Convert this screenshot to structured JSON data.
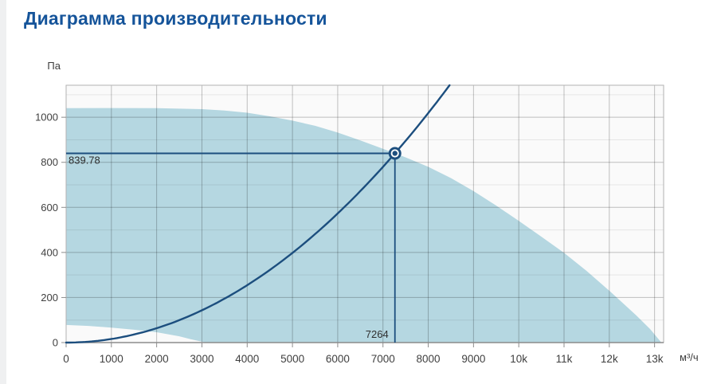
{
  "page": {
    "title": "Диаграмма производительности",
    "title_color": "#15549a",
    "background": "#eff0f1",
    "card_background": "#ffffff"
  },
  "chart_data": {
    "type": "area",
    "title": "Диаграмма производительности",
    "x_unit": "м³/ч",
    "y_unit": "Па",
    "x_range": [
      0,
      13200
    ],
    "y_range": [
      0,
      1142
    ],
    "grid": true,
    "x_ticks": [
      {
        "value": 0,
        "label": "0"
      },
      {
        "value": 1000,
        "label": "1000"
      },
      {
        "value": 2000,
        "label": "2000"
      },
      {
        "value": 3000,
        "label": "3000"
      },
      {
        "value": 4000,
        "label": "4000"
      },
      {
        "value": 5000,
        "label": "5000"
      },
      {
        "value": 6000,
        "label": "6000"
      },
      {
        "value": 7000,
        "label": "7000"
      },
      {
        "value": 8000,
        "label": "8000"
      },
      {
        "value": 9000,
        "label": "9000"
      },
      {
        "value": 10000,
        "label": "10k"
      },
      {
        "value": 11000,
        "label": "11k"
      },
      {
        "value": 12000,
        "label": "12k"
      },
      {
        "value": 13000,
        "label": "13k"
      }
    ],
    "y_ticks": [
      {
        "value": 0,
        "label": "0"
      },
      {
        "value": 200,
        "label": "200"
      },
      {
        "value": 400,
        "label": "400"
      },
      {
        "value": 600,
        "label": "600"
      },
      {
        "value": 800,
        "label": "800"
      },
      {
        "value": 1000,
        "label": "1000"
      }
    ],
    "y_minor_gridlines": [
      100,
      300,
      500,
      700,
      900,
      1100
    ],
    "envelope": {
      "fill": "#b5d7e1",
      "upper_boundary": [
        [
          0,
          1040
        ],
        [
          1000,
          1041
        ],
        [
          2000,
          1040
        ],
        [
          3000,
          1036
        ],
        [
          3500,
          1030
        ],
        [
          4000,
          1020
        ],
        [
          4500,
          1004
        ],
        [
          5000,
          985
        ],
        [
          5500,
          962
        ],
        [
          6000,
          932
        ],
        [
          6500,
          897
        ],
        [
          7000,
          860
        ],
        [
          7264,
          840
        ],
        [
          7500,
          822
        ],
        [
          8000,
          780
        ],
        [
          8500,
          730
        ],
        [
          9000,
          672
        ],
        [
          9500,
          608
        ],
        [
          10000,
          540
        ],
        [
          10500,
          470
        ],
        [
          11000,
          398
        ],
        [
          11500,
          318
        ],
        [
          12000,
          230
        ],
        [
          12300,
          175
        ],
        [
          12600,
          120
        ],
        [
          12900,
          60
        ],
        [
          13150,
          0
        ]
      ],
      "lower_boundary": [
        [
          0,
          78
        ],
        [
          500,
          74
        ],
        [
          1000,
          66
        ],
        [
          1500,
          57
        ],
        [
          2000,
          46
        ],
        [
          2500,
          28
        ],
        [
          2750,
          15
        ],
        [
          3000,
          4
        ],
        [
          3100,
          0
        ],
        [
          13150,
          0
        ]
      ]
    },
    "system_curve": {
      "type": "quadratic_through_origin",
      "passes_through": {
        "x": 7264,
        "y": 839.78
      },
      "color": "#1c4e7e",
      "width": 2.4
    },
    "operating_point": {
      "x": 7264,
      "y": 839.78,
      "x_label": "7264",
      "y_label": "839.78",
      "color": "#1c4e7e"
    },
    "styles": {
      "plot_background": "#fafafa",
      "grid_major": "rgba(0,0,0,0.24)",
      "grid_minor": "rgba(0,0,0,0.08)",
      "border": "#b2b2b2",
      "axis_line": "#8c8c8c",
      "tick_text": "#404040",
      "point_label_text": "#2e2e2e"
    }
  }
}
